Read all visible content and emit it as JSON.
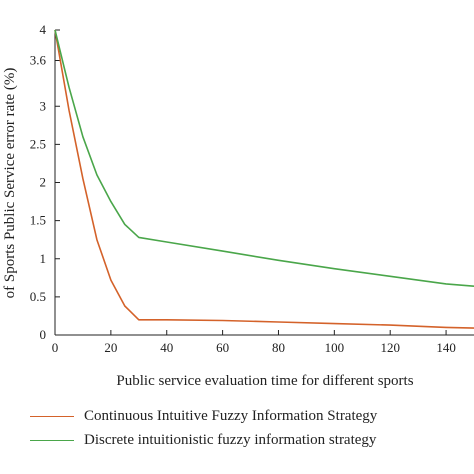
{
  "chart_data": {
    "type": "line",
    "xlabel": "Public service evaluation time for different sports",
    "ylabel": "of Sports Public Service error rate (%)",
    "xlim": [
      0,
      150
    ],
    "ylim": [
      0,
      4
    ],
    "x_ticks": [
      "0",
      "20",
      "40",
      "60",
      "80",
      "100",
      "120",
      "140"
    ],
    "y_ticks": [
      "0",
      "0.5",
      "1",
      "1.5",
      "2",
      "2.5",
      "3",
      "3.6",
      "4"
    ],
    "series": [
      {
        "name": "Continuous Intuitive Fuzzy Information Strategy",
        "color": "#d4622a",
        "x": [
          0,
          5,
          10,
          15,
          20,
          25,
          30,
          40,
          60,
          80,
          100,
          120,
          140,
          150
        ],
        "y": [
          4.0,
          2.95,
          2.05,
          1.25,
          0.72,
          0.38,
          0.2,
          0.2,
          0.19,
          0.17,
          0.15,
          0.13,
          0.1,
          0.09
        ]
      },
      {
        "name": "Discrete intuitionistic fuzzy information strategy",
        "color": "#4aa64a",
        "x": [
          0,
          5,
          10,
          15,
          20,
          25,
          30,
          40,
          60,
          80,
          100,
          120,
          140,
          150
        ],
        "y": [
          4.0,
          3.25,
          2.6,
          2.1,
          1.75,
          1.45,
          1.28,
          1.22,
          1.1,
          0.98,
          0.87,
          0.77,
          0.67,
          0.64
        ]
      }
    ],
    "grid": false,
    "legend_position": "bottom"
  }
}
